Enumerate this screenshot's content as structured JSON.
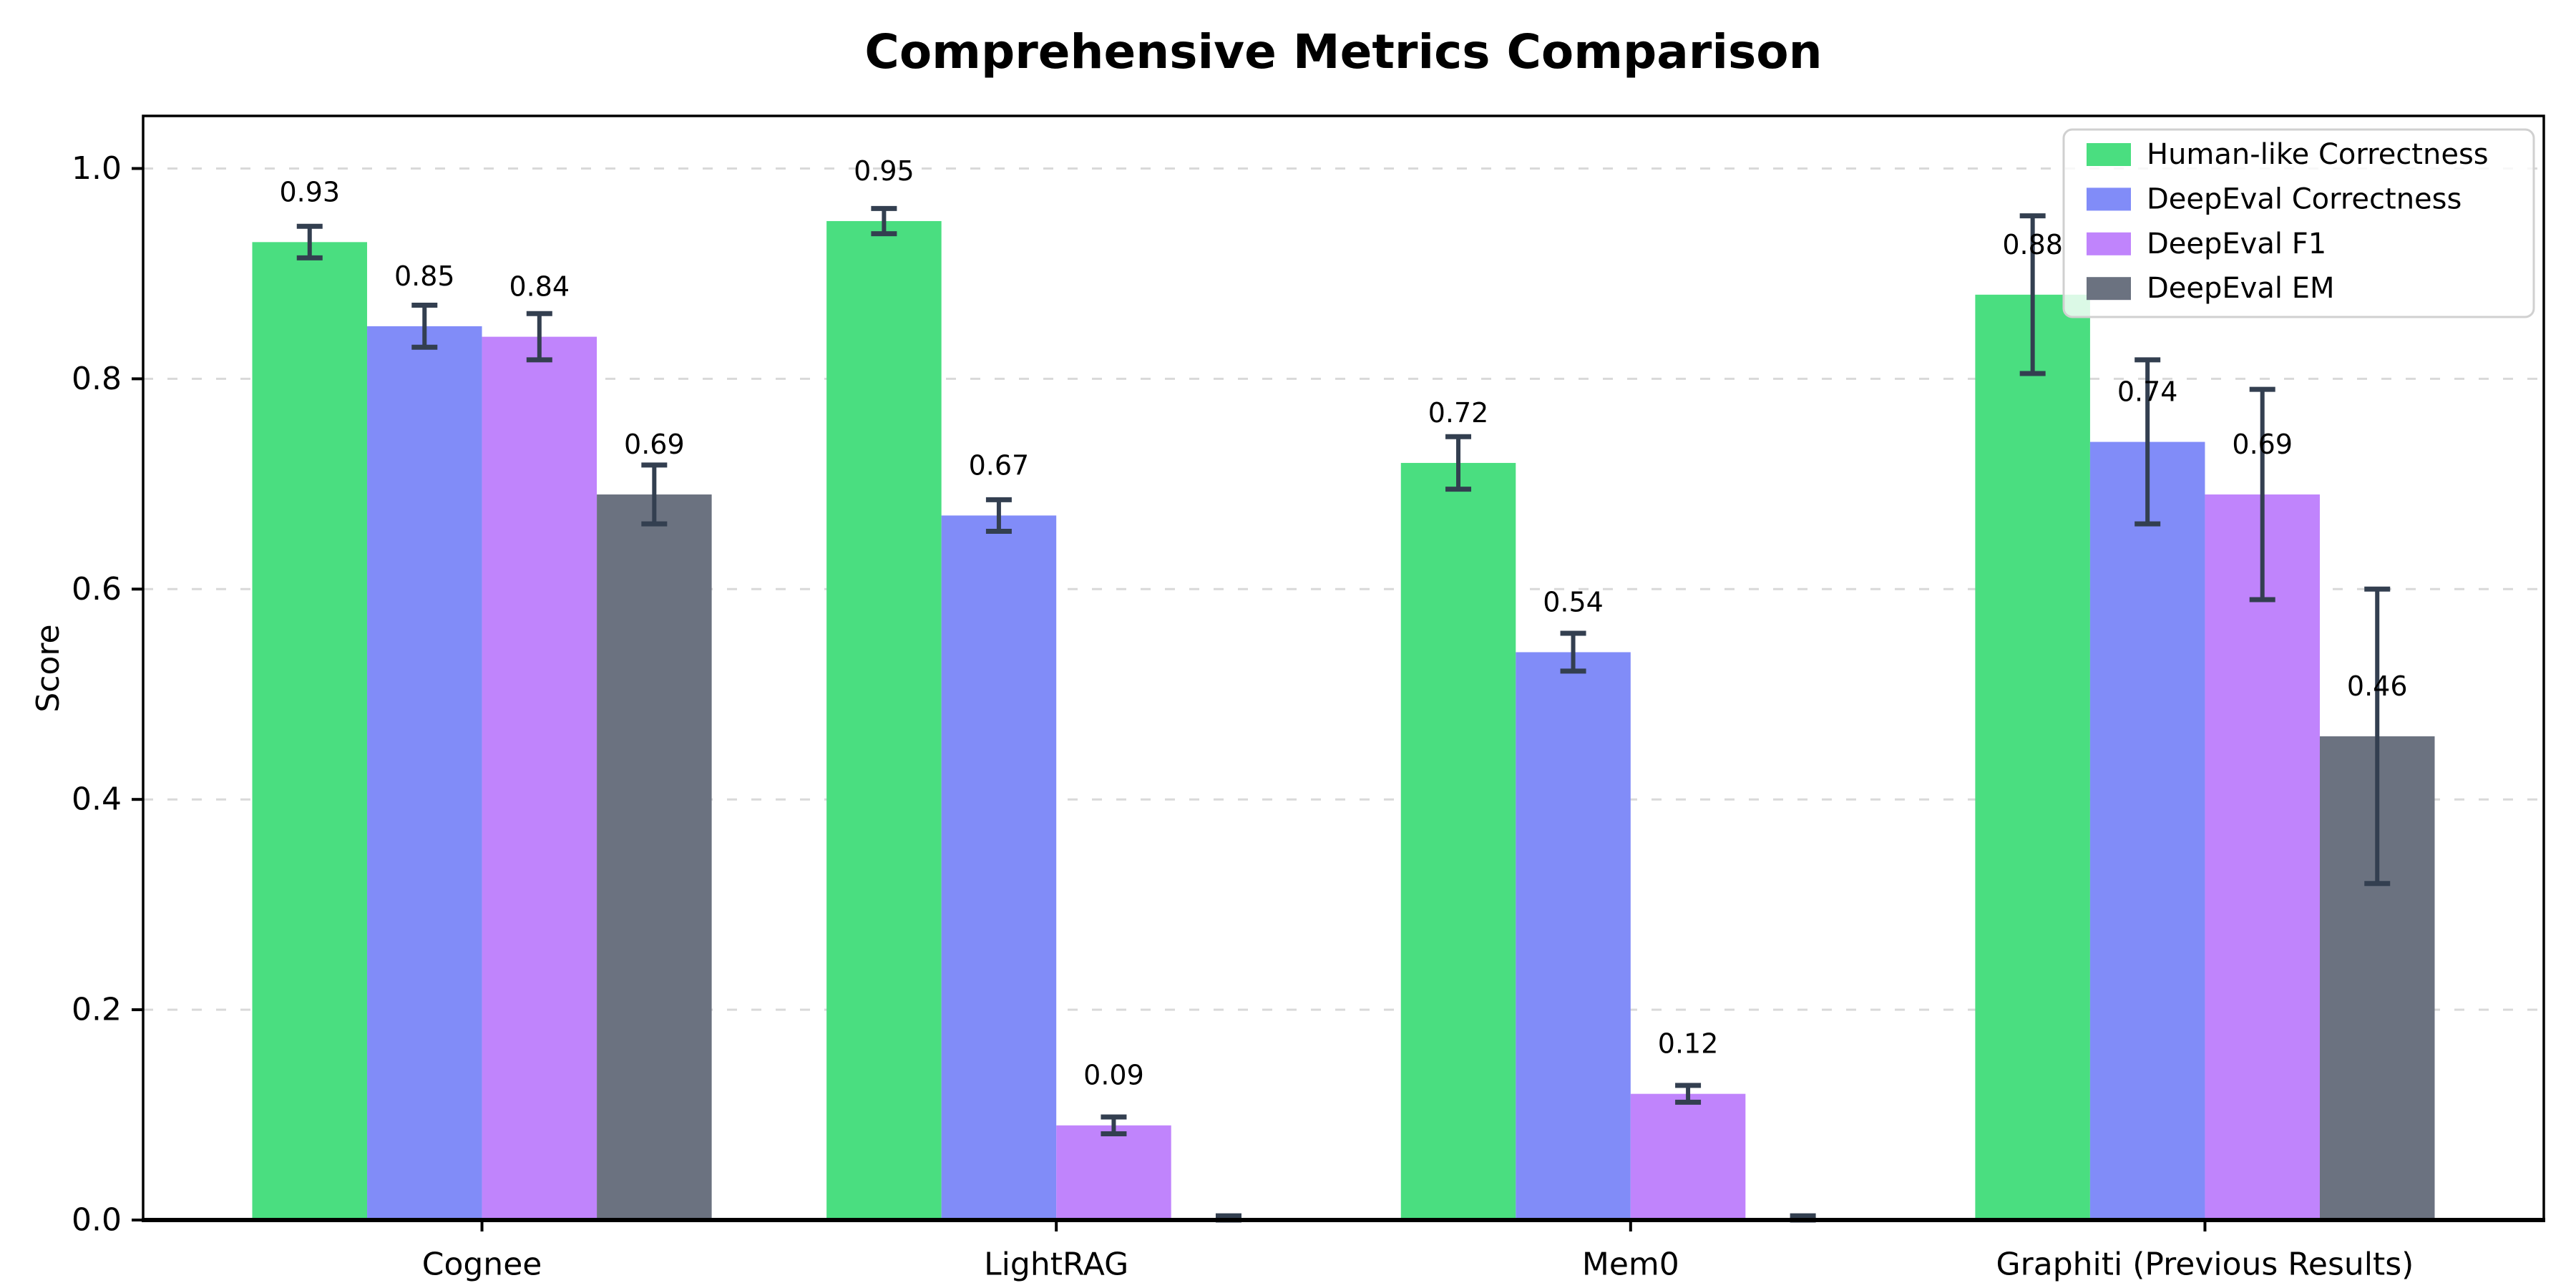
{
  "page": {
    "background": "#ffffff"
  },
  "chart_data": {
    "type": "bar",
    "title": "Comprehensive Metrics Comparison",
    "ylabel": "Score",
    "categories": [
      "Cognee",
      "LightRAG",
      "Mem0",
      "Graphiti (Previous Results)"
    ],
    "series": [
      {
        "name": "Human-like Correctness",
        "color": "#4ade80",
        "values": [
          0.93,
          0.95,
          0.72,
          0.88
        ],
        "errors": [
          0.015,
          0.012,
          0.025,
          0.075
        ],
        "labels": [
          "0.93",
          "0.95",
          "0.72",
          "0.88"
        ]
      },
      {
        "name": "DeepEval Correctness",
        "color": "#818cf8",
        "values": [
          0.85,
          0.67,
          0.54,
          0.74
        ],
        "errors": [
          0.02,
          0.015,
          0.018,
          0.078
        ],
        "labels": [
          "0.85",
          "0.67",
          "0.54",
          "0.74"
        ]
      },
      {
        "name": "DeepEval F1",
        "color": "#c084fc",
        "values": [
          0.84,
          0.09,
          0.12,
          0.69
        ],
        "errors": [
          0.022,
          0.008,
          0.008,
          0.1
        ],
        "labels": [
          "0.84",
          "0.09",
          "0.12",
          "0.69"
        ]
      },
      {
        "name": "DeepEval EM",
        "color": "#6b7280",
        "values": [
          0.69,
          0.0,
          0.0,
          0.46
        ],
        "errors": [
          0.028,
          0.004,
          0.004,
          0.14
        ],
        "labels": [
          "0.69",
          "",
          "",
          "0.46"
        ]
      }
    ],
    "yticks": [
      0.0,
      0.2,
      0.4,
      0.6,
      0.8,
      1.0
    ],
    "ytick_labels": [
      "0.0",
      "0.2",
      "0.4",
      "0.6",
      "0.8",
      "1.0"
    ],
    "ylim": [
      0,
      1.05
    ],
    "grid": "dashed-horizontal",
    "legend_position": "upper-right",
    "colors": {
      "error_bar": "#333f50",
      "grid": "#d9d9d9",
      "axis": "#000000",
      "bar_label": "#000000",
      "legend_border": "#d0d0d0",
      "legend_background": "rgba(255,255,255,0.8)"
    }
  }
}
